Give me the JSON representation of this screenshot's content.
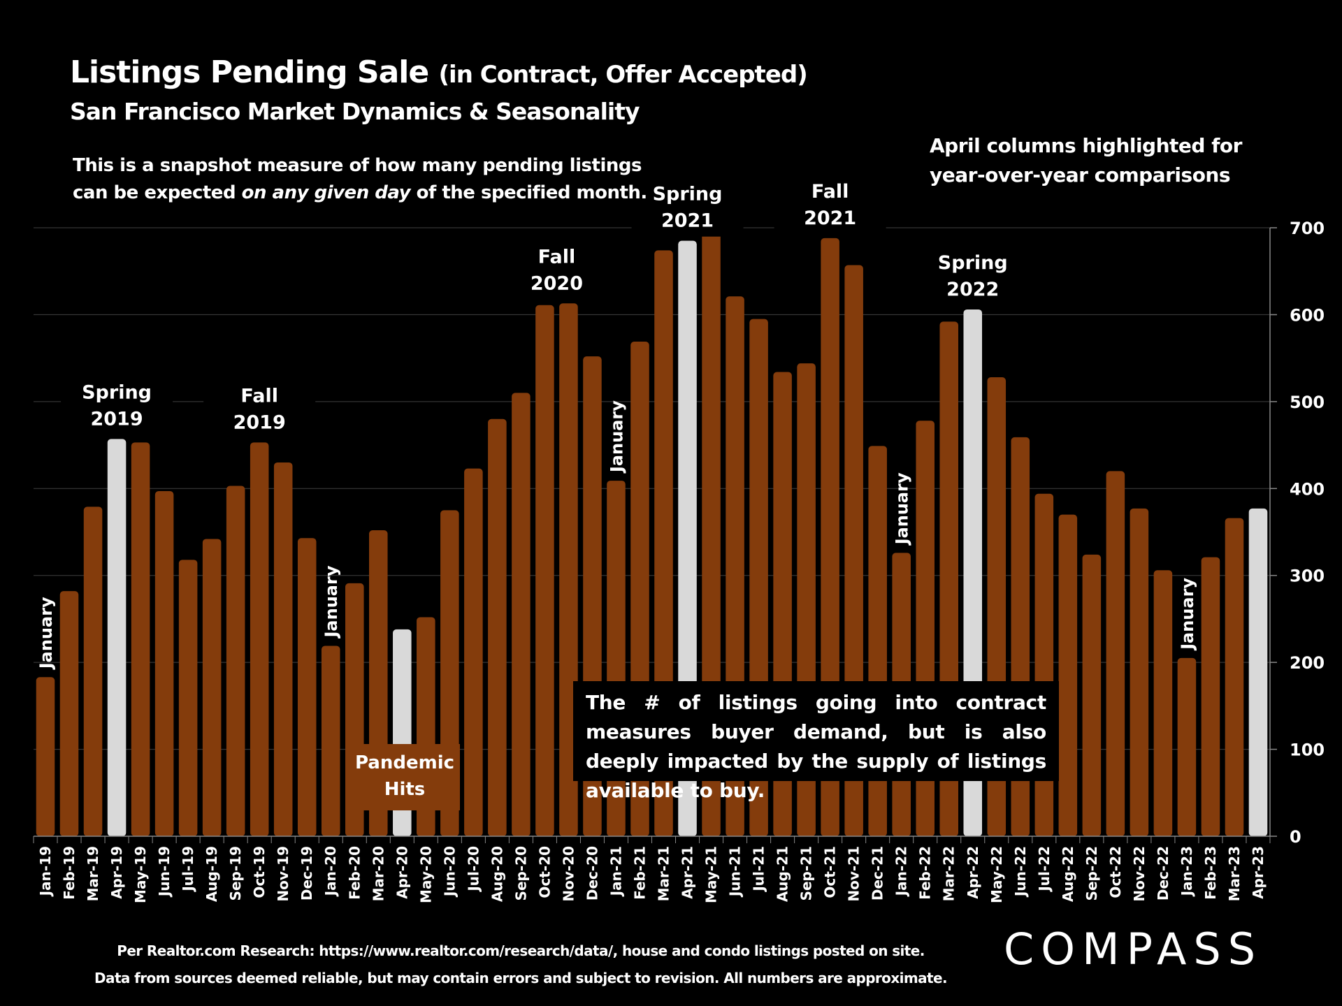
{
  "header": {
    "title_main": "Listings Pending Sale",
    "title_paren": "(in Contract, Offer Accepted)",
    "subtitle": "San Francisco Market Dynamics & Seasonality"
  },
  "notes": {
    "snapshot_line1": "This is a snapshot measure of how many pending listings",
    "snapshot_line2_pre": "can be expected ",
    "snapshot_line2_em": "on any given day",
    "snapshot_line2_post": " of the specified month.",
    "april_line1": "April columns highlighted for",
    "april_line2": "year-over-year comparisons",
    "callout": "The # of listings going into contract measures buyer demand, but is also deeply impacted by the supply of listings available to buy.",
    "pandemic": "Pandemic Hits"
  },
  "footer": {
    "line1": "Per Realtor.com Research:  https://www.realtor.com/research/data/, house and condo listings posted on site.",
    "line2": "Data from sources deemed reliable, but may contain errors and subject to revision. All numbers are approximate.",
    "logo": "COMPASS"
  },
  "colors": {
    "bar": "#843c0c",
    "highlight": "#d9d9d9",
    "background": "#000000",
    "grid": "#404040"
  },
  "chart_data": {
    "type": "bar",
    "title": "Listings Pending Sale (in Contract, Offer Accepted)",
    "subtitle": "San Francisco Market Dynamics & Seasonality",
    "xlabel": "",
    "ylabel": "",
    "ylim": [
      0,
      700
    ],
    "yticks": [
      0,
      100,
      200,
      300,
      400,
      500,
      600,
      700
    ],
    "y_axis_side": "right",
    "grid": true,
    "categories": [
      "Jan-19",
      "Feb-19",
      "Mar-19",
      "Apr-19",
      "May-19",
      "Jun-19",
      "Jul-19",
      "Aug-19",
      "Sep-19",
      "Oct-19",
      "Nov-19",
      "Dec-19",
      "Jan-20",
      "Feb-20",
      "Mar-20",
      "Apr-20",
      "May-20",
      "Jun-20",
      "Jul-20",
      "Aug-20",
      "Sep-20",
      "Oct-20",
      "Nov-20",
      "Dec-20",
      "Jan-21",
      "Feb-21",
      "Mar-21",
      "Apr-21",
      "May-21",
      "Jun-21",
      "Jul-21",
      "Aug-21",
      "Sep-21",
      "Oct-21",
      "Nov-21",
      "Dec-21",
      "Jan-22",
      "Feb-22",
      "Mar-22",
      "Apr-22",
      "May-22",
      "Jun-22",
      "Jul-22",
      "Aug-22",
      "Sep-22",
      "Oct-22",
      "Nov-22",
      "Dec-22",
      "Jan-23",
      "Feb-23",
      "Mar-23",
      "Apr-23"
    ],
    "values": [
      183,
      282,
      379,
      457,
      453,
      397,
      318,
      342,
      403,
      453,
      430,
      343,
      219,
      291,
      352,
      238,
      252,
      375,
      423,
      480,
      510,
      611,
      613,
      552,
      409,
      569,
      674,
      685,
      698,
      621,
      595,
      534,
      544,
      688,
      657,
      449,
      326,
      478,
      592,
      606,
      528,
      459,
      394,
      370,
      324,
      420,
      377,
      306,
      205,
      321,
      366,
      377
    ],
    "highlighted": [
      "Apr-19",
      "Apr-20",
      "Apr-21",
      "Apr-22",
      "Apr-23"
    ],
    "annotations": [
      {
        "text": "January",
        "category": "Jan-19",
        "rotated": true
      },
      {
        "text": "January",
        "category": "Jan-20",
        "rotated": true
      },
      {
        "text": "January",
        "category": "Jan-21",
        "rotated": true
      },
      {
        "text": "January",
        "category": "Jan-22",
        "rotated": true
      },
      {
        "text": "January",
        "category": "Jan-23",
        "rotated": true
      },
      {
        "text": "Spring|2019",
        "category": "Apr-19"
      },
      {
        "text": "Fall|2019",
        "category": "Oct-19"
      },
      {
        "text": "Fall|2020",
        "category": "Oct-20/Nov-20"
      },
      {
        "text": "Spring|2021",
        "category": "Apr-21"
      },
      {
        "text": "Fall|2021",
        "category": "Oct-21"
      },
      {
        "text": "Spring|2022",
        "category": "Apr-22"
      }
    ]
  }
}
